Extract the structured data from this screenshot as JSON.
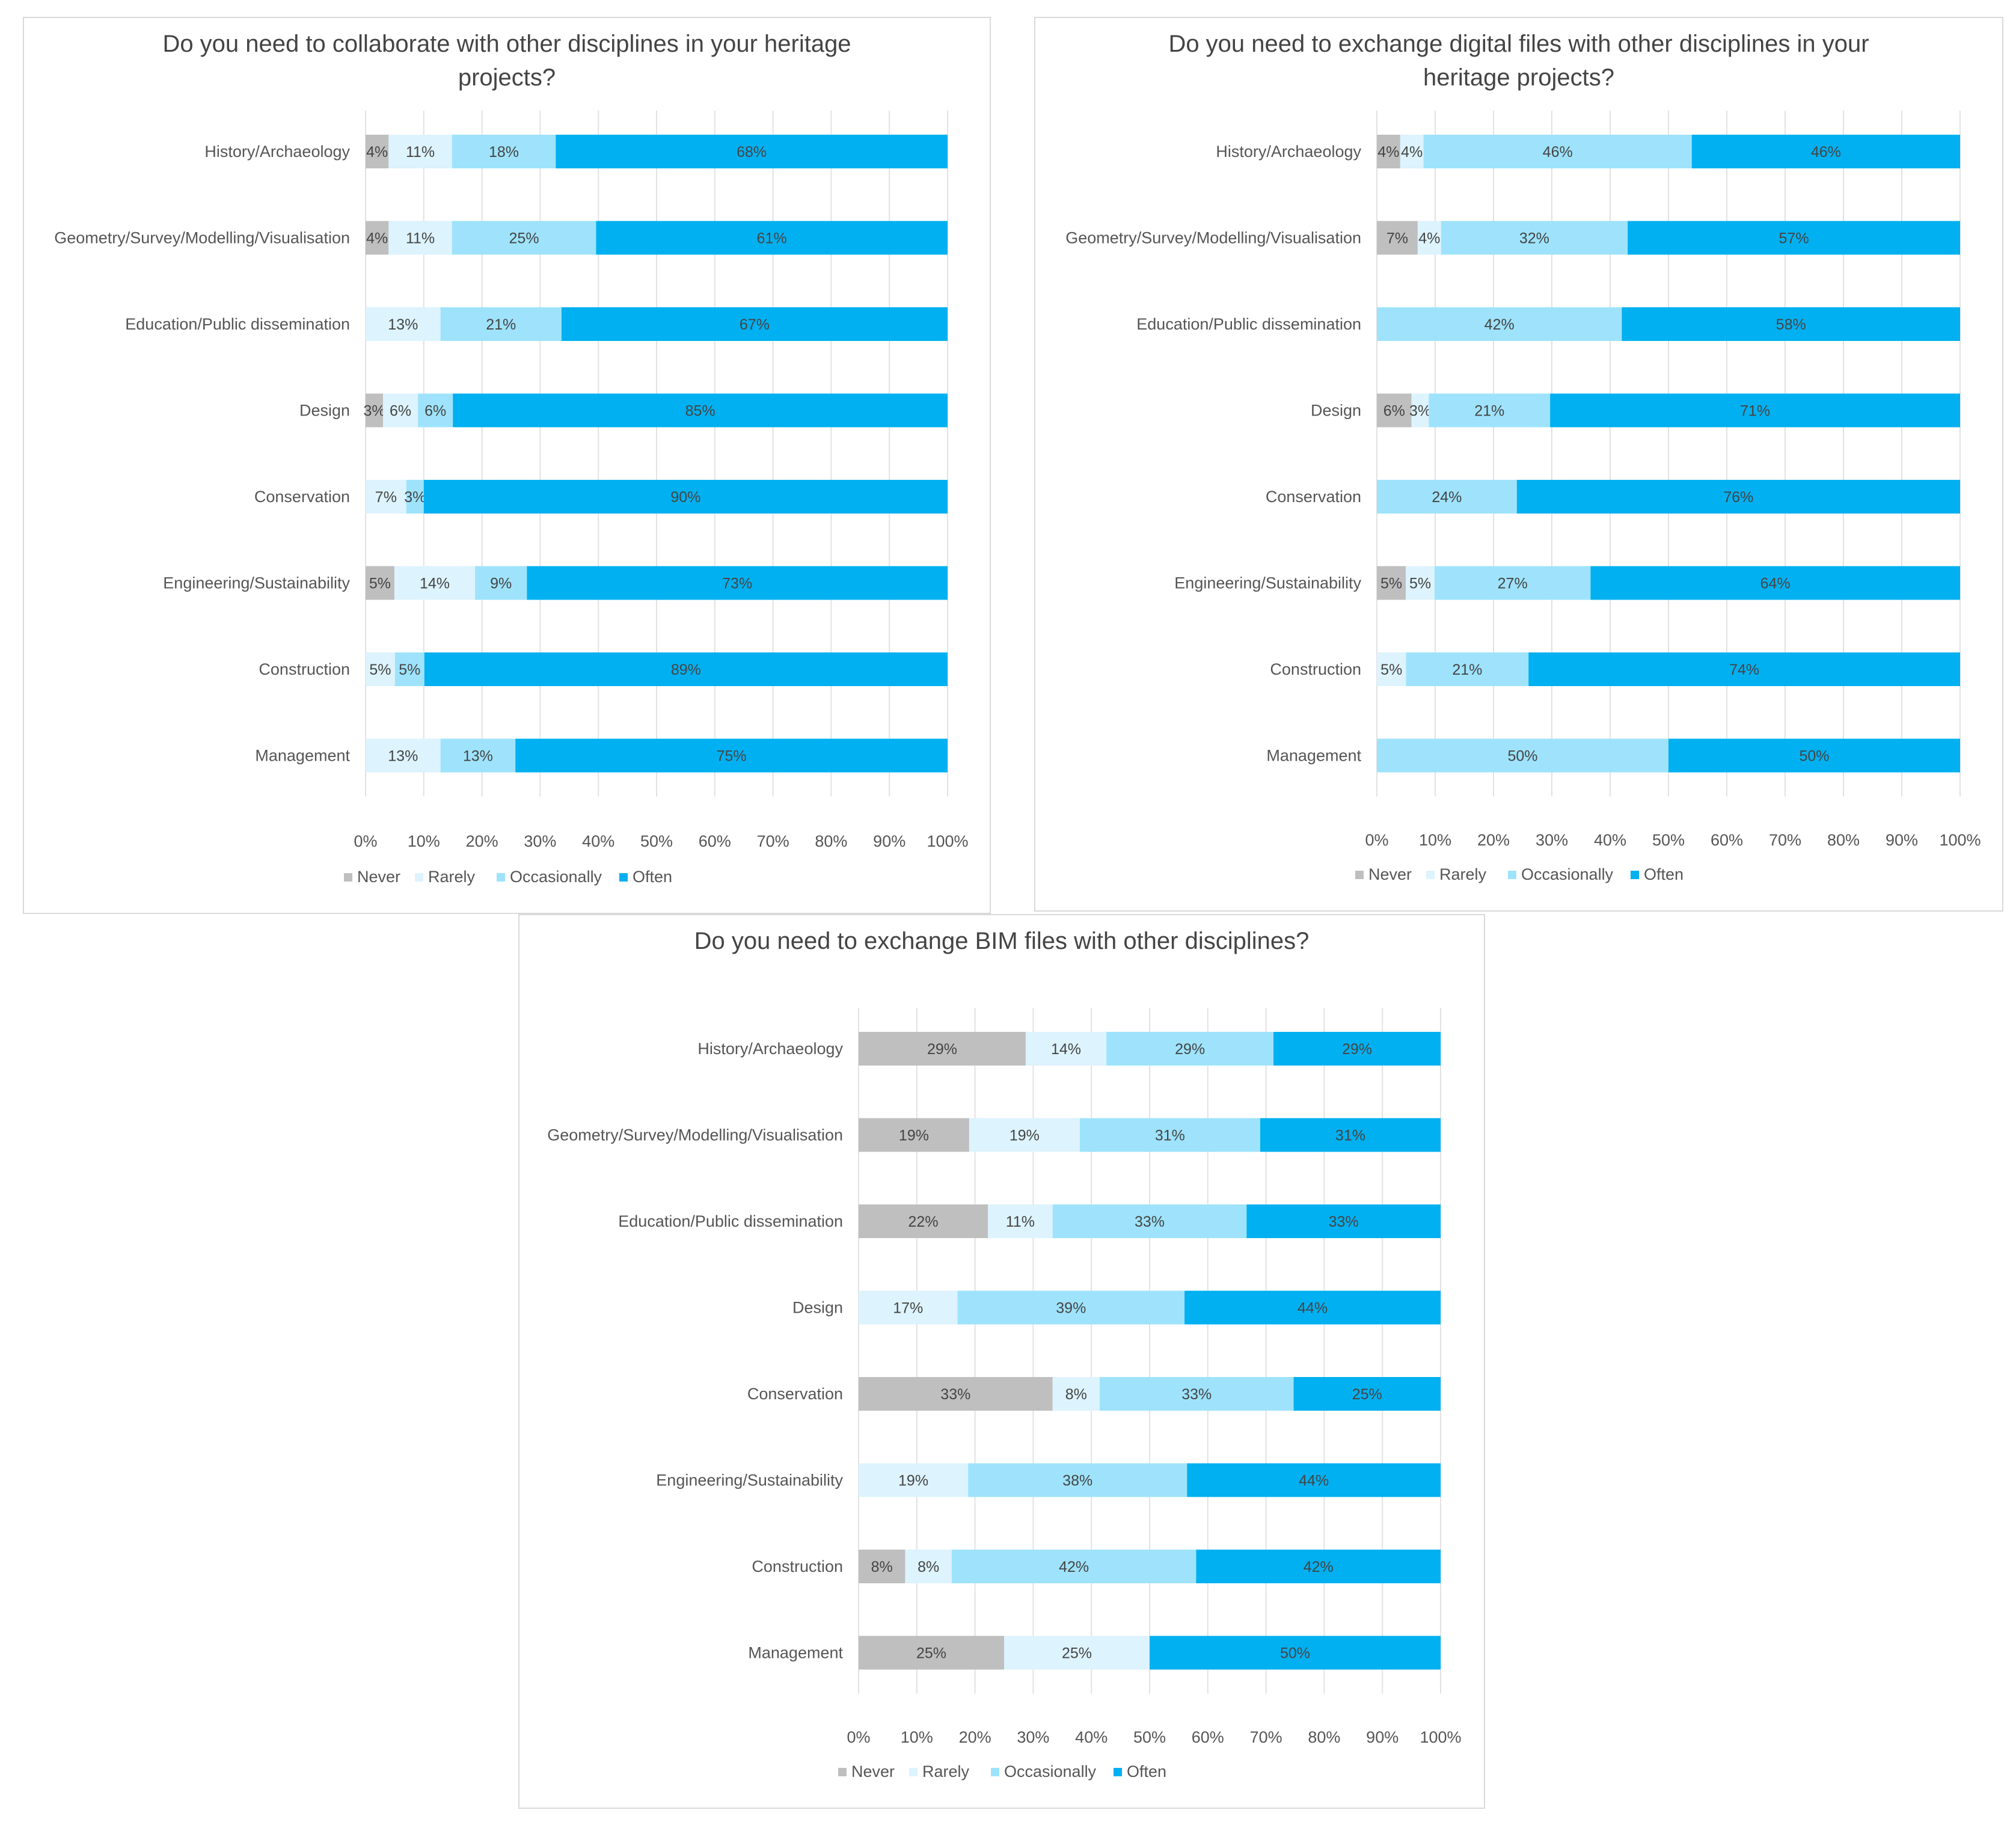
{
  "chart_data": [
    {
      "type": "bar",
      "orientation": "horizontal",
      "stacked": "100%",
      "title": [
        "Do you need to collaborate with other disciplines in your heritage",
        "projects?"
      ],
      "categories": [
        "History/Archaeology",
        "Geometry/Survey/Modelling/Visualisation",
        "Education/Public dissemination",
        "Design",
        "Conservation",
        "Engineering/Sustainability",
        "Construction",
        "Management"
      ],
      "series": [
        {
          "name": "Never",
          "values": [
            4,
            4,
            0,
            3,
            0,
            5,
            0,
            0
          ],
          "labels": [
            "4%",
            "4%",
            "",
            "3%",
            "",
            "5%",
            "",
            ""
          ]
        },
        {
          "name": "Rarely",
          "values": [
            11,
            11,
            13,
            6,
            7,
            14,
            5,
            13
          ],
          "labels": [
            "11%",
            "11%",
            "13%",
            "6%",
            "7%",
            "14%",
            "5%",
            "13%"
          ]
        },
        {
          "name": "Occasionally",
          "values": [
            18,
            25,
            21,
            6,
            3,
            9,
            5,
            13
          ],
          "labels": [
            "18%",
            "25%",
            "21%",
            "6%",
            "3%",
            "9%",
            "5%",
            "13%"
          ]
        },
        {
          "name": "Often",
          "values": [
            68,
            61,
            67,
            85,
            90,
            73,
            89,
            75
          ],
          "labels": [
            "68%",
            "61%",
            "67%",
            "85%",
            "90%",
            "73%",
            "89%",
            "75%"
          ]
        }
      ],
      "xticks": [
        "0%",
        "10%",
        "20%",
        "30%",
        "40%",
        "50%",
        "60%",
        "70%",
        "80%",
        "90%",
        "100%"
      ],
      "xlim": [
        0,
        100
      ],
      "grid": "vertical",
      "legend": "bottom"
    },
    {
      "type": "bar",
      "orientation": "horizontal",
      "stacked": "100%",
      "title": [
        "Do you need to exchange digital files with other disciplines in your",
        "heritage projects?"
      ],
      "categories": [
        "History/Archaeology",
        "Geometry/Survey/Modelling/Visualisation",
        "Education/Public dissemination",
        "Design",
        "Conservation",
        "Engineering/Sustainability",
        "Construction",
        "Management"
      ],
      "series": [
        {
          "name": "Never",
          "values": [
            4,
            7,
            0,
            6,
            0,
            5,
            0,
            0
          ],
          "labels": [
            "4%",
            "7%",
            "",
            "6%",
            "",
            "5%",
            "",
            ""
          ]
        },
        {
          "name": "Rarely",
          "values": [
            4,
            4,
            0,
            3,
            0,
            5,
            5,
            0
          ],
          "labels": [
            "4%",
            "4%",
            "",
            "3%",
            "",
            "5%",
            "5%",
            ""
          ]
        },
        {
          "name": "Occasionally",
          "values": [
            46,
            32,
            42,
            21,
            24,
            27,
            21,
            50
          ],
          "labels": [
            "46%",
            "32%",
            "42%",
            "21%",
            "24%",
            "27%",
            "21%",
            "50%"
          ]
        },
        {
          "name": "Often",
          "values": [
            46,
            57,
            58,
            71,
            76,
            64,
            74,
            50
          ],
          "labels": [
            "46%",
            "57%",
            "58%",
            "71%",
            "76%",
            "64%",
            "74%",
            "50%"
          ]
        }
      ],
      "xticks": [
        "0%",
        "10%",
        "20%",
        "30%",
        "40%",
        "50%",
        "60%",
        "70%",
        "80%",
        "90%",
        "100%"
      ],
      "xlim": [
        0,
        100
      ],
      "grid": "vertical",
      "legend": "bottom"
    },
    {
      "type": "bar",
      "orientation": "horizontal",
      "stacked": "100%",
      "title": [
        "Do you need to exchange BIM files with other disciplines?"
      ],
      "categories": [
        "History/Archaeology",
        "Geometry/Survey/Modelling/Visualisation",
        "Education/Public dissemination",
        "Design",
        "Conservation",
        "Engineering/Sustainability",
        "Construction",
        "Management"
      ],
      "series": [
        {
          "name": "Never",
          "values": [
            29,
            19,
            22,
            0,
            33,
            0,
            8,
            25
          ],
          "labels": [
            "29%",
            "19%",
            "22%",
            "",
            "33%",
            "",
            "8%",
            "25%"
          ]
        },
        {
          "name": "Rarely",
          "values": [
            14,
            19,
            11,
            17,
            8,
            19,
            8,
            25
          ],
          "labels": [
            "14%",
            "19%",
            "11%",
            "17%",
            "8%",
            "19%",
            "8%",
            "25%"
          ]
        },
        {
          "name": "Occasionally",
          "values": [
            29,
            31,
            33,
            39,
            33,
            38,
            42,
            0
          ],
          "labels": [
            "29%",
            "31%",
            "33%",
            "39%",
            "33%",
            "38%",
            "42%",
            ""
          ]
        },
        {
          "name": "Often",
          "values": [
            29,
            31,
            33,
            44,
            25,
            44,
            42,
            50
          ],
          "labels": [
            "29%",
            "31%",
            "33%",
            "44%",
            "25%",
            "44%",
            "42%",
            "50%"
          ]
        }
      ],
      "xticks": [
        "0%",
        "10%",
        "20%",
        "30%",
        "40%",
        "50%",
        "60%",
        "70%",
        "80%",
        "90%",
        "100%"
      ],
      "xlim": [
        0,
        100
      ],
      "grid": "vertical",
      "legend": "bottom"
    }
  ],
  "colors": {
    "Never": "#bfbfbf",
    "Rarely": "#ddf3fd",
    "Occasionally": "#9ee3fb",
    "Often": "#00b0f0"
  }
}
